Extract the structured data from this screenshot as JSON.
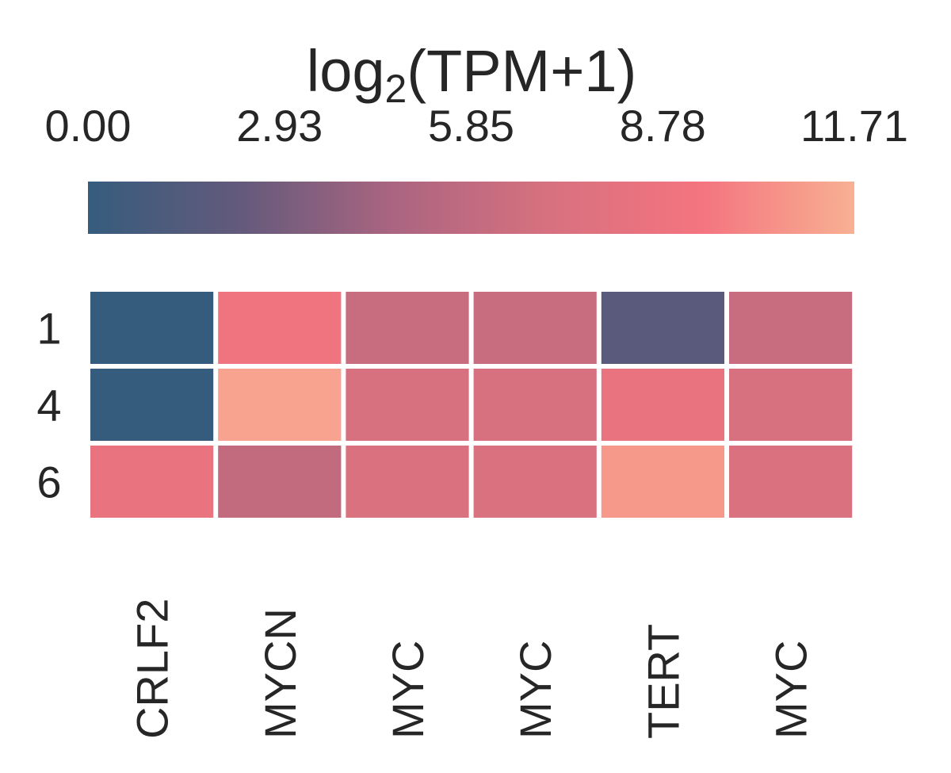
{
  "chart_data": {
    "type": "heatmap",
    "title": {
      "prefix": "log",
      "subscript": "2",
      "suffix": "(TPM+1)"
    },
    "colorbar": {
      "min": 0.0,
      "max": 11.71,
      "ticks": [
        "0.00",
        "2.93",
        "5.85",
        "8.78",
        "11.71"
      ],
      "orientation": "horizontal",
      "placement": "top",
      "palette": [
        "#365c7d",
        "#645a7c",
        "#ab6580",
        "#d7717f",
        "#f4747f",
        "#f8b093"
      ]
    },
    "rows": [
      "1",
      "4",
      "6"
    ],
    "columns": [
      "CRLF2",
      "MYCN",
      "MYC",
      "MYC",
      "TERT",
      "MYC"
    ],
    "values": [
      [
        0.0,
        9.0,
        6.2,
        6.2,
        1.8,
        6.2
      ],
      [
        0.0,
        11.2,
        7.0,
        7.0,
        8.5,
        7.0
      ],
      [
        8.5,
        5.9,
        7.3,
        7.3,
        10.8,
        7.3
      ]
    ],
    "grid": false,
    "cell_gap": "white"
  }
}
